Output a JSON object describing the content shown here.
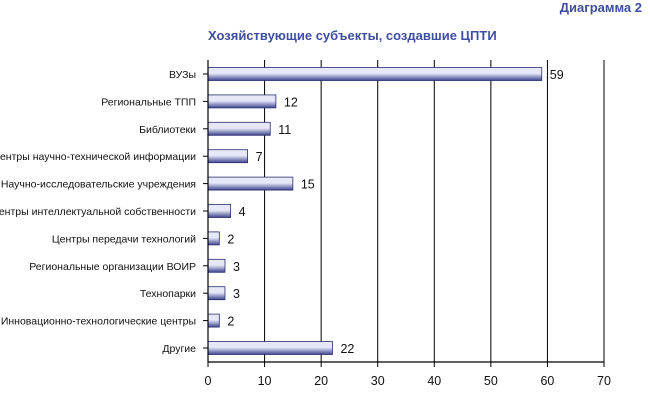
{
  "corner_label": "Диаграмма 2",
  "chart_data": {
    "type": "bar",
    "orientation": "horizontal",
    "title": "Хозяйствующие субъекты, создавшие ЦПТИ",
    "xlabel": "",
    "ylabel": "",
    "categories": [
      "ВУЗы",
      "Региональные ТПП",
      "Библиотеки",
      "Центры научно-технической информации",
      "Научно-исследовательские учреждения",
      "Центры интеллектуальной собственности",
      "Центры передачи технологий",
      "Региональные организации ВОИР",
      "Технопарки",
      "Инновационно-технологические центры",
      "Другие"
    ],
    "values": [
      59,
      12,
      11,
      7,
      15,
      4,
      2,
      3,
      3,
      2,
      22
    ],
    "xlim": [
      0,
      70
    ],
    "xticks": [
      0,
      10,
      20,
      30,
      40,
      50,
      60,
      70
    ],
    "grid": "vertical",
    "colors": {
      "bar_fill_light": "#e6e8f7",
      "bar_fill_dark": "#3d4490",
      "bar_stroke": "#2a2f6e",
      "title": "#3e4ea0"
    }
  }
}
